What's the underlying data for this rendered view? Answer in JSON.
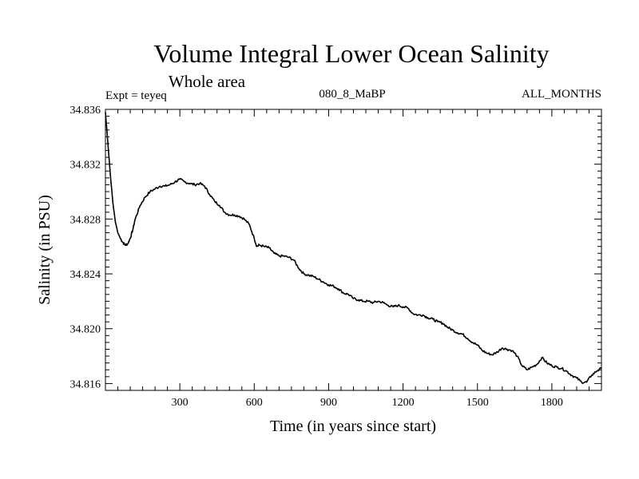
{
  "header": {
    "title": "Volume Integral Lower Ocean Salinity",
    "subtitle": "Whole area",
    "expt_label": "Expt = teyeq",
    "run_id": "080_8_MaBP",
    "months_label": "ALL_MONTHS"
  },
  "chart_data": {
    "type": "line",
    "title": "Volume Integral Lower Ocean Salinity",
    "subtitle": "Whole area",
    "xlabel": "Time (in years since start)",
    "ylabel": "Salinity (in PSU)",
    "xlim": [
      0,
      2000
    ],
    "ylim": [
      34.8155,
      34.836
    ],
    "x_ticks": [
      300,
      600,
      900,
      1200,
      1500,
      1800
    ],
    "y_ticks": [
      34.816,
      34.82,
      34.824,
      34.828,
      34.832,
      34.836
    ],
    "grid": false,
    "series": [
      {
        "name": "Salinity",
        "color": "#000000",
        "points": [
          [
            0,
            34.8358
          ],
          [
            10,
            34.8335
          ],
          [
            20,
            34.8312
          ],
          [
            30,
            34.8292
          ],
          [
            40,
            34.8278
          ],
          [
            50,
            34.827
          ],
          [
            60,
            34.8266
          ],
          [
            70,
            34.8263
          ],
          [
            80,
            34.8261
          ],
          [
            90,
            34.8262
          ],
          [
            100,
            34.8266
          ],
          [
            110,
            34.8272
          ],
          [
            120,
            34.828
          ],
          [
            140,
            34.829
          ],
          [
            160,
            34.8296
          ],
          [
            180,
            34.83
          ],
          [
            200,
            34.8302
          ],
          [
            220,
            34.8304
          ],
          [
            240,
            34.8304
          ],
          [
            260,
            34.8305
          ],
          [
            280,
            34.8307
          ],
          [
            300,
            34.8309
          ],
          [
            320,
            34.8307
          ],
          [
            340,
            34.8306
          ],
          [
            360,
            34.8305
          ],
          [
            380,
            34.8306
          ],
          [
            400,
            34.8304
          ],
          [
            420,
            34.8298
          ],
          [
            440,
            34.8293
          ],
          [
            460,
            34.829
          ],
          [
            480,
            34.8285
          ],
          [
            500,
            34.8283
          ],
          [
            520,
            34.8283
          ],
          [
            540,
            34.8282
          ],
          [
            560,
            34.828
          ],
          [
            580,
            34.8276
          ],
          [
            600,
            34.8266
          ],
          [
            610,
            34.826
          ],
          [
            620,
            34.8261
          ],
          [
            640,
            34.826
          ],
          [
            660,
            34.8259
          ],
          [
            680,
            34.8255
          ],
          [
            700,
            34.8253
          ],
          [
            720,
            34.8253
          ],
          [
            740,
            34.8252
          ],
          [
            760,
            34.825
          ],
          [
            780,
            34.8244
          ],
          [
            800,
            34.824
          ],
          [
            820,
            34.8239
          ],
          [
            840,
            34.8238
          ],
          [
            860,
            34.8236
          ],
          [
            880,
            34.8234
          ],
          [
            900,
            34.8232
          ],
          [
            920,
            34.8231
          ],
          [
            940,
            34.8229
          ],
          [
            960,
            34.8226
          ],
          [
            980,
            34.8225
          ],
          [
            1000,
            34.8222
          ],
          [
            1020,
            34.8221
          ],
          [
            1040,
            34.822
          ],
          [
            1060,
            34.822
          ],
          [
            1080,
            34.8219
          ],
          [
            1100,
            34.822
          ],
          [
            1120,
            34.8219
          ],
          [
            1140,
            34.8217
          ],
          [
            1160,
            34.8216
          ],
          [
            1180,
            34.8217
          ],
          [
            1200,
            34.8216
          ],
          [
            1220,
            34.8215
          ],
          [
            1240,
            34.8211
          ],
          [
            1260,
            34.821
          ],
          [
            1280,
            34.821
          ],
          [
            1300,
            34.8208
          ],
          [
            1320,
            34.8207
          ],
          [
            1340,
            34.8205
          ],
          [
            1360,
            34.8204
          ],
          [
            1380,
            34.8201
          ],
          [
            1400,
            34.8199
          ],
          [
            1420,
            34.8197
          ],
          [
            1440,
            34.8196
          ],
          [
            1460,
            34.8193
          ],
          [
            1480,
            34.819
          ],
          [
            1500,
            34.8188
          ],
          [
            1520,
            34.8184
          ],
          [
            1540,
            34.8182
          ],
          [
            1560,
            34.8181
          ],
          [
            1580,
            34.8183
          ],
          [
            1600,
            34.8186
          ],
          [
            1620,
            34.8185
          ],
          [
            1640,
            34.8184
          ],
          [
            1660,
            34.818
          ],
          [
            1680,
            34.8173
          ],
          [
            1700,
            34.817
          ],
          [
            1720,
            34.8172
          ],
          [
            1740,
            34.8174
          ],
          [
            1760,
            34.8179
          ],
          [
            1780,
            34.8175
          ],
          [
            1800,
            34.8173
          ],
          [
            1820,
            34.8172
          ],
          [
            1840,
            34.8171
          ],
          [
            1860,
            34.8169
          ],
          [
            1880,
            34.8166
          ],
          [
            1900,
            34.8164
          ],
          [
            1920,
            34.8161
          ],
          [
            1940,
            34.8161
          ],
          [
            1960,
            34.8166
          ],
          [
            1980,
            34.8169
          ],
          [
            2000,
            34.8171
          ]
        ]
      }
    ]
  }
}
